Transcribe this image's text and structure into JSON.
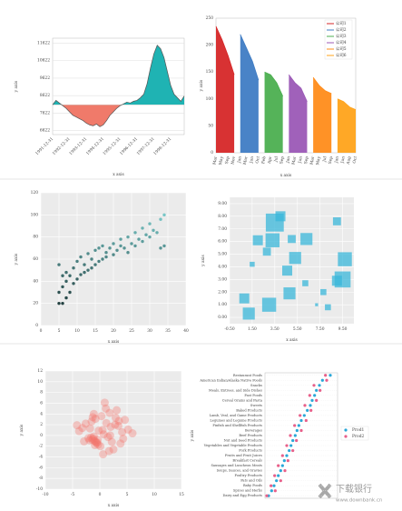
{
  "chart_data": [
    {
      "type": "area",
      "categories": [
        "1991-12-31",
        null,
        null,
        null,
        null,
        "1992-12-31",
        null,
        null,
        null,
        null,
        "1993-12-31",
        null,
        null,
        null,
        null,
        "1994-12-31",
        null,
        null,
        null,
        null,
        "1995-12-31",
        null,
        null,
        null,
        null,
        "1996-12-31",
        null,
        null,
        null,
        null,
        "1997-12-31",
        null,
        null,
        null,
        null,
        "1998-12-31",
        null,
        null,
        null,
        null
      ],
      "values": [
        8100,
        8350,
        8200,
        8050,
        7900,
        7700,
        7500,
        7400,
        7300,
        7200,
        7050,
        6950,
        6900,
        7000,
        6850,
        6950,
        7200,
        7500,
        7700,
        7900,
        8050,
        8150,
        8250,
        8200,
        8300,
        8350,
        8500,
        8700,
        9300,
        10200,
        11000,
        11500,
        11300,
        10800,
        10000,
        9200,
        8700,
        8500,
        8300,
        8600
      ],
      "ylim": [
        6400,
        11900
      ],
      "yticks": [
        6622,
        7622,
        8622,
        9622,
        10622,
        11622
      ],
      "grid": true,
      "color_above": "#1fb3b3",
      "color_below": "#f07a6a",
      "line_color": "#555555",
      "x_label": "x axis",
      "y_label": "y axis"
    },
    {
      "type": "area",
      "categories": [
        "Mar",
        "May",
        "Sep",
        "Nov",
        "Jan",
        "Mar",
        "Jun",
        "Oct",
        "Feb",
        "Apr",
        "Jul",
        "Sep",
        "Jan",
        "Mar",
        "Jun",
        "Sep",
        "Mar",
        "May",
        "Jul",
        "Sep",
        "Jan",
        "Jun",
        "Aug",
        "Oct"
      ],
      "series": [
        {
          "name": "公司1",
          "color": "#d62728",
          "values": [
            235,
            210,
            180,
            145,
            null,
            null,
            null,
            null,
            null,
            null,
            null,
            null,
            null,
            null,
            null,
            null,
            null,
            null,
            null,
            null,
            null,
            null,
            null,
            null
          ]
        },
        {
          "name": "公司2",
          "color": "#3f7cc4",
          "values": [
            null,
            null,
            null,
            null,
            220,
            195,
            170,
            135,
            null,
            null,
            null,
            null,
            null,
            null,
            null,
            null,
            null,
            null,
            null,
            null,
            null,
            null,
            null,
            null
          ]
        },
        {
          "name": "公司3",
          "color": "#4caf50",
          "values": [
            null,
            null,
            null,
            null,
            null,
            null,
            null,
            null,
            150,
            145,
            130,
            105,
            null,
            null,
            null,
            null,
            null,
            null,
            null,
            null,
            null,
            null,
            null,
            null
          ]
        },
        {
          "name": "公司4",
          "color": "#9b59b6",
          "values": [
            null,
            null,
            null,
            null,
            null,
            null,
            null,
            null,
            null,
            null,
            null,
            null,
            145,
            130,
            120,
            95,
            null,
            null,
            null,
            null,
            null,
            null,
            null,
            null
          ]
        },
        {
          "name": "公司5",
          "color": "#ff8c1a",
          "values": [
            null,
            null,
            null,
            null,
            null,
            null,
            null,
            null,
            null,
            null,
            null,
            null,
            null,
            null,
            null,
            null,
            140,
            125,
            115,
            110,
            null,
            null,
            null,
            null
          ]
        },
        {
          "name": "公司6",
          "color": "#ffa31a",
          "values": [
            null,
            null,
            null,
            null,
            null,
            null,
            null,
            null,
            null,
            null,
            null,
            null,
            null,
            null,
            null,
            null,
            null,
            null,
            null,
            null,
            100,
            95,
            85,
            80
          ]
        }
      ],
      "ylim": [
        0,
        250
      ],
      "yticks": [
        0,
        50,
        100,
        150,
        200,
        250
      ],
      "grid": false,
      "legend": "upper right",
      "x_label": "x axis",
      "y_label": "y axis"
    },
    {
      "type": "scatter",
      "x": [
        5,
        5,
        6,
        6,
        7,
        7,
        7,
        8,
        8,
        9,
        9,
        10,
        10,
        11,
        11,
        12,
        12,
        13,
        13,
        14,
        14,
        15,
        15,
        16,
        16,
        17,
        17,
        18,
        18,
        19,
        20,
        20,
        21,
        22,
        22,
        23,
        24,
        24,
        25,
        26,
        26,
        27,
        28,
        28,
        29,
        30,
        30,
        31,
        32,
        33,
        33,
        34,
        34,
        5,
        6
      ],
      "values": [
        20,
        55,
        20,
        35,
        25,
        40,
        48,
        30,
        45,
        38,
        52,
        42,
        58,
        46,
        62,
        48,
        55,
        50,
        65,
        52,
        60,
        55,
        68,
        58,
        70,
        60,
        72,
        62,
        66,
        70,
        64,
        74,
        68,
        72,
        78,
        70,
        66,
        80,
        74,
        72,
        84,
        78,
        76,
        88,
        82,
        80,
        92,
        86,
        84,
        96,
        70,
        100,
        72,
        30,
        45
      ],
      "xlim": [
        0,
        40
      ],
      "xticks": [
        0,
        5,
        10,
        15,
        20,
        25,
        30,
        35,
        40
      ],
      "ylim": [
        0,
        120
      ],
      "yticks": [
        0,
        20,
        40,
        60,
        80,
        100,
        120
      ],
      "grid": true,
      "background": "#ebebeb",
      "color_scale": [
        "#0d1f1f",
        "#8ee8e8"
      ],
      "x_label": "x axis",
      "y_label": "y axis"
    },
    {
      "type": "bubble",
      "x": [
        1.2,
        2.8,
        3.3,
        3.5,
        4.0,
        6.3,
        9.0,
        9.7,
        5.0,
        5.3,
        4.6,
        3.0,
        0.8,
        9.5,
        9.0,
        7.8,
        7.2,
        6.2,
        2.0,
        4.8,
        8.2,
        1.5
      ],
      "values": [
        0.3,
        5.2,
        6.1,
        7.5,
        8.0,
        6.2,
        7.6,
        4.6,
        6.2,
        4.7,
        3.7,
        1.0,
        1.5,
        3.0,
        2.9,
        2.0,
        1.0,
        2.7,
        6.1,
        1.9,
        0.8,
        4.2
      ],
      "sizes": [
        12,
        8,
        14,
        18,
        10,
        12,
        8,
        14,
        8,
        12,
        10,
        14,
        10,
        16,
        10,
        6,
        3,
        6,
        10,
        12,
        6,
        5
      ],
      "color": "#3ab7da",
      "opacity": 0.75,
      "xlim": [
        -0.5,
        10.5
      ],
      "xticks": [
        {
          "value": -0.5,
          "label": "-0.50"
        },
        {
          "value": 1.5,
          "label": "1.50"
        },
        {
          "value": 3.5,
          "label": "3.50"
        },
        {
          "value": 5.5,
          "label": "5.50"
        },
        {
          "value": 7.5,
          "label": "7.50"
        },
        {
          "value": 9.5,
          "label": "9.50"
        }
      ],
      "ylim": [
        -0.5,
        9.5
      ],
      "yticks": [
        {
          "value": 0,
          "label": "0.00"
        },
        {
          "value": 1,
          "label": "1.00"
        },
        {
          "value": 2,
          "label": "2.00"
        },
        {
          "value": 3,
          "label": "3.00"
        },
        {
          "value": 4,
          "label": "4.00"
        },
        {
          "value": 5,
          "label": "5.00"
        },
        {
          "value": 6,
          "label": "6.00"
        },
        {
          "value": 7,
          "label": "7.00"
        },
        {
          "value": 8,
          "label": "8.00"
        },
        {
          "value": 9,
          "label": "9.00"
        }
      ],
      "grid": true,
      "background": "#ebebeb",
      "x_label": "x axis",
      "y_label": "y axis"
    },
    {
      "type": "scatter",
      "x": [
        0.5,
        1.2,
        -2.1,
        3.4,
        -0.8,
        2.2,
        4.1,
        -3.2,
        1.8,
        0.1,
        -1.5,
        2.9,
        5.2,
        -0.4,
        1.1,
        3.8,
        -2.6,
        0.7,
        2.5,
        -1.1,
        4.6,
        -3.8,
        1.5,
        0.3,
        -0.9,
        2.0,
        3.1,
        -1.8,
        6.0,
        0.9,
        -2.9,
        1.7,
        2.8,
        -0.2,
        4.3,
        -1.3,
        0.6,
        3.5,
        -4.2,
        1.9,
        -1.0,
        -1.2,
        -0.6,
        -1.4,
        -0.8,
        -1.6,
        -0.3,
        -1.9,
        -0.5,
        -1.1
      ],
      "values": [
        1.0,
        2.3,
        -0.5,
        1.8,
        3.1,
        -1.2,
        0.6,
        1.4,
        4.2,
        -2.0,
        2.6,
        3.3,
        1.1,
        -0.8,
        5.0,
        -1.5,
        2.2,
        0.2,
        -2.6,
        4.0,
        2.9,
        0.8,
        -0.3,
        3.6,
        -1.8,
        1.6,
        4.7,
        1.3,
        0.4,
        6.1,
        -1.1,
        -2.9,
        2.0,
        0.9,
        -0.6,
        3.4,
        -3.5,
        2.7,
        1.9,
        0.0,
        -1.0,
        -0.6,
        -1.4,
        -0.8,
        -1.2,
        -0.4,
        -1.7,
        -0.9,
        -1.3,
        -0.2
      ],
      "color": "#f4746a",
      "opacity": 0.35,
      "xlim": [
        -10,
        15
      ],
      "xticks": [
        -10,
        -5,
        0,
        5,
        10,
        15
      ],
      "ylim": [
        -10,
        12
      ],
      "yticks": [
        -10,
        -8,
        -6,
        -4,
        -2,
        0,
        2,
        4,
        6,
        8,
        10,
        12
      ],
      "grid": true,
      "background": "#ebebeb",
      "x_label": "x axis",
      "y_label": "y axis"
    },
    {
      "type": "dot",
      "categories": [
        "Restaurant Foods",
        "American Indian/Alaska Native Foods",
        "Snacks",
        "Meals, Entrees, and Side Dishes",
        "Fast Foods",
        "Cereal Grains and Pasta",
        "Sweets",
        "Baked Products",
        "Lamb, Veal, and Game Products",
        "Legumes and Legume Products",
        "Finfish and Shellfish Products",
        "Beverages",
        "Beef Products",
        "Nut and Seed Products",
        "Vegetables and Vegetable Products",
        "Pork Products",
        "Fruits and Fruit Juices",
        "Breakfast Cereals",
        "Sausages and Luncheon Meats",
        "Soups, Sauces, and Gravies",
        "Poultry Products",
        "Fats and Oils",
        "Baby Foods",
        "Spices and Herbs",
        "Dairy and Egg Products"
      ],
      "series": [
        {
          "name": "Prod1",
          "color": "#2aa8d8",
          "values": [
            10.8,
            9.5,
            9.0,
            8.5,
            8.2,
            7.8,
            7.5,
            7.0,
            6.5,
            6.0,
            5.6,
            5.3,
            5.0,
            4.6,
            4.3,
            4.0,
            3.6,
            3.2,
            2.9,
            2.6,
            2.2,
            1.9,
            1.5,
            1.1,
            0.6
          ]
        },
        {
          "name": "Prod2",
          "color": "#e8608a",
          "values": [
            10.0,
            10.2,
            8.1,
            9.1,
            7.4,
            8.5,
            6.6,
            7.6,
            5.8,
            6.8,
            4.9,
            6.0,
            4.2,
            5.2,
            3.6,
            4.6,
            2.9,
            3.8,
            2.2,
            3.3,
            1.6,
            2.6,
            1.0,
            1.7,
            0.3
          ]
        }
      ],
      "xlim": [
        0,
        12
      ],
      "legend": "right",
      "y_label": "y axis"
    }
  ],
  "watermark": {
    "text": "下载银行",
    "url": "www.downbank.cn"
  }
}
